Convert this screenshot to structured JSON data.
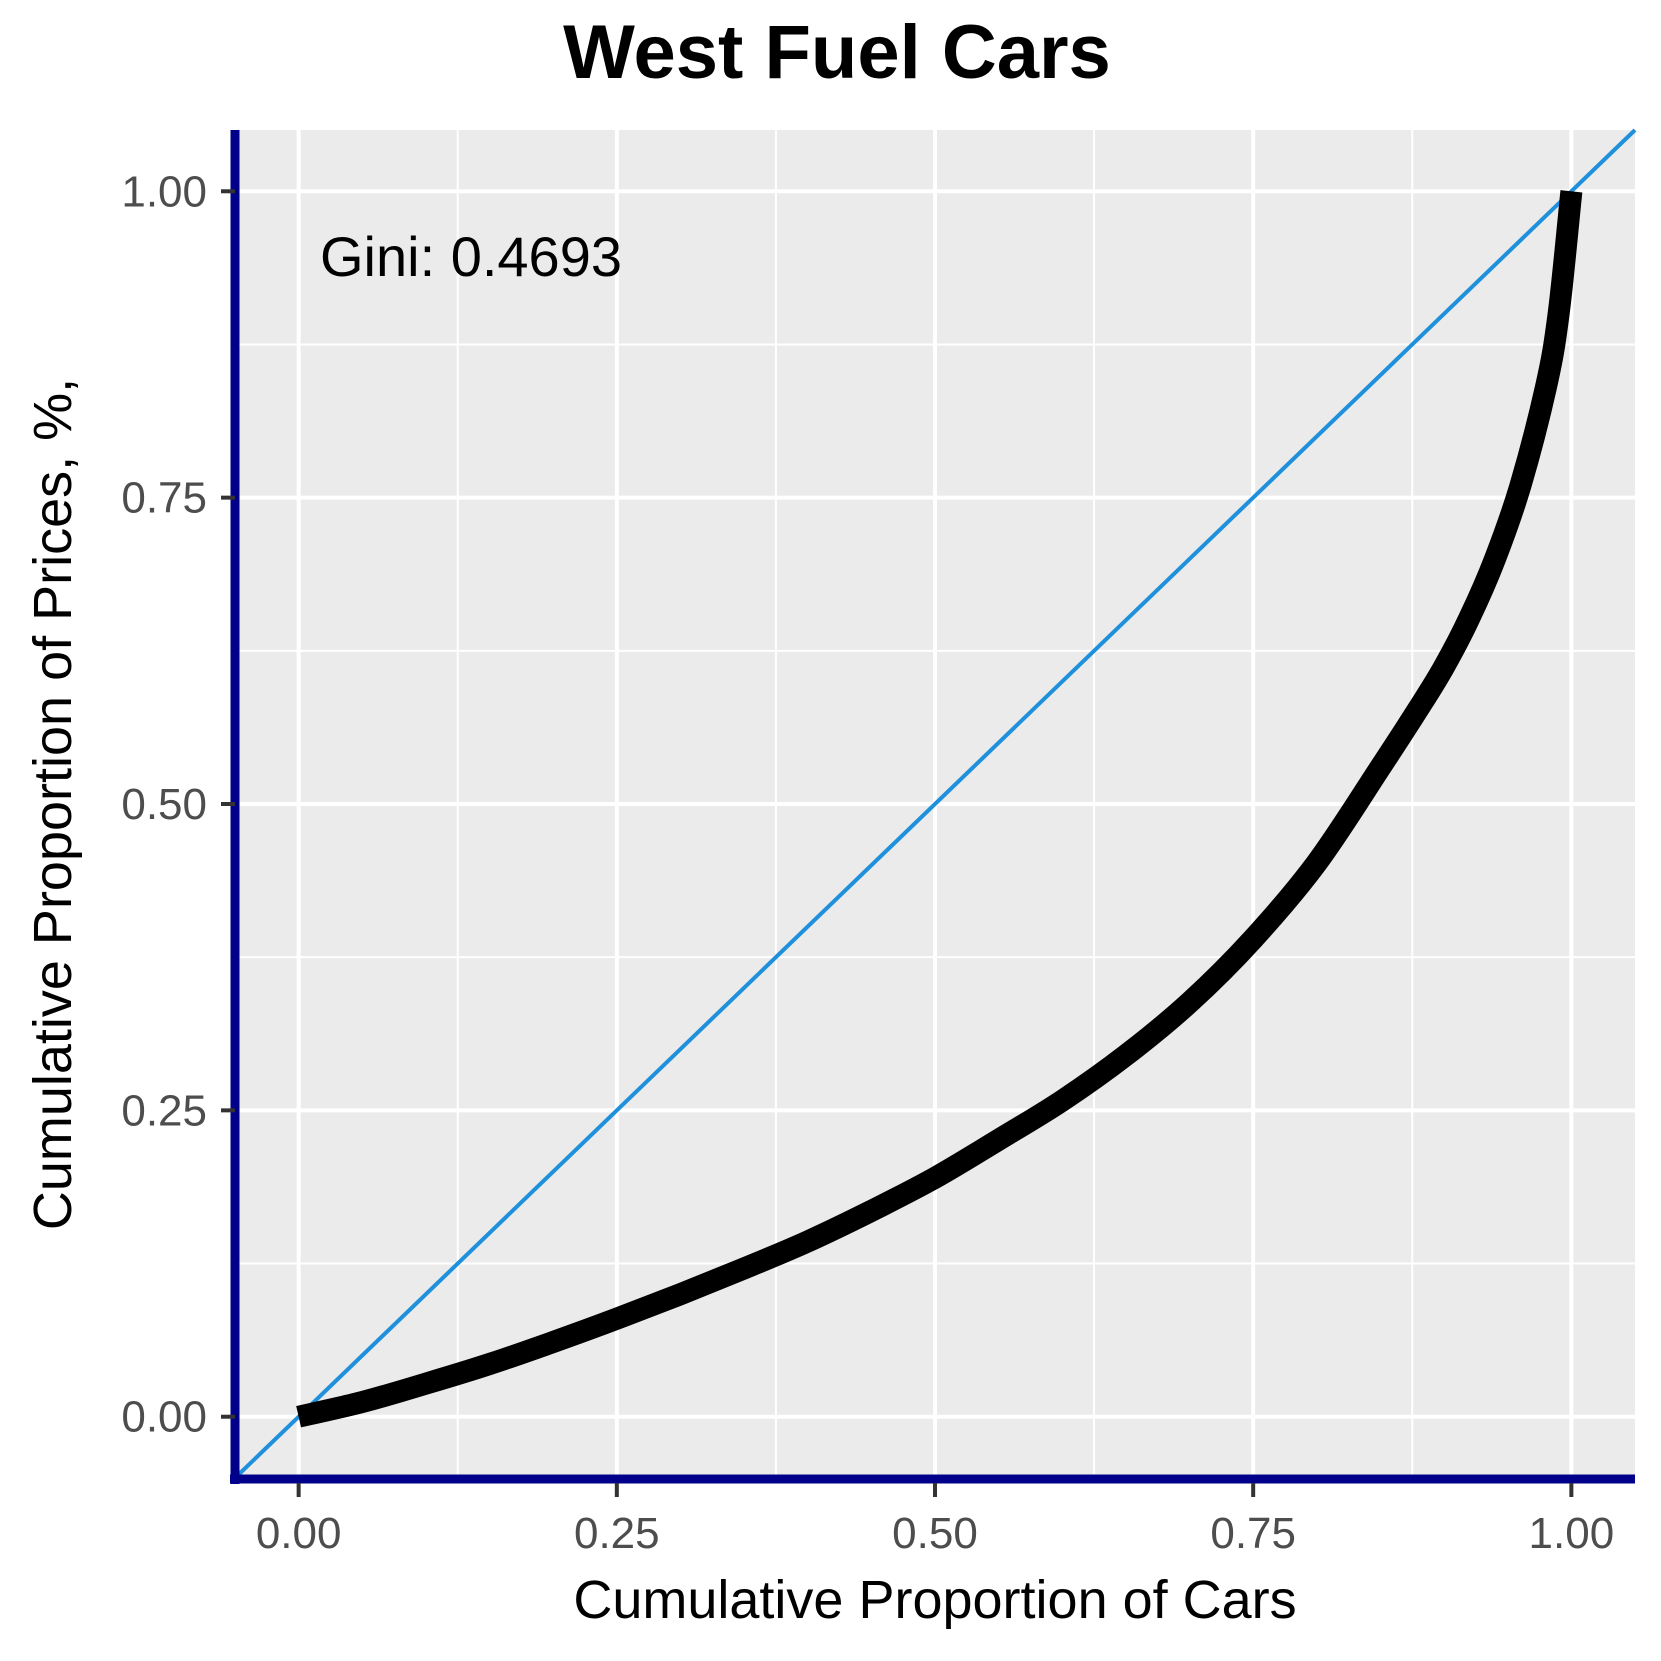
{
  "chart_data": {
    "type": "line",
    "title": "West Fuel Cars",
    "xlabel": "Cumulative Proportion of Cars",
    "ylabel": "Cumulative Proportion of Prices, %,",
    "xlim": [
      -0.05,
      1.05
    ],
    "ylim": [
      -0.05,
      1.05
    ],
    "x_ticks": [
      "0.00",
      "0.25",
      "0.50",
      "0.75",
      "1.00"
    ],
    "y_ticks": [
      "0.00",
      "0.25",
      "0.50",
      "0.75",
      "1.00"
    ],
    "grid": true,
    "annotation": "Gini: 0.4693",
    "colors": {
      "panel_background": "#ebebeb",
      "grid": "#ffffff",
      "axis_line": "#00008b",
      "equality_line": "#1e90dc",
      "lorenz_curve": "#000000"
    },
    "series": [
      {
        "role": "equality_line",
        "x": [
          -0.05,
          1.05
        ],
        "y": [
          -0.05,
          1.05
        ]
      },
      {
        "role": "lorenz_curve",
        "x": [
          0.0,
          0.05,
          0.1,
          0.15,
          0.2,
          0.25,
          0.3,
          0.35,
          0.4,
          0.45,
          0.5,
          0.55,
          0.6,
          0.65,
          0.7,
          0.75,
          0.8,
          0.85,
          0.88,
          0.9,
          0.92,
          0.94,
          0.96,
          0.98,
          0.99,
          1.0
        ],
        "y": [
          0.0,
          0.012,
          0.027,
          0.043,
          0.061,
          0.08,
          0.1,
          0.121,
          0.143,
          0.168,
          0.195,
          0.226,
          0.258,
          0.295,
          0.338,
          0.39,
          0.452,
          0.53,
          0.578,
          0.612,
          0.652,
          0.7,
          0.76,
          0.84,
          0.9,
          1.0
        ]
      }
    ]
  }
}
